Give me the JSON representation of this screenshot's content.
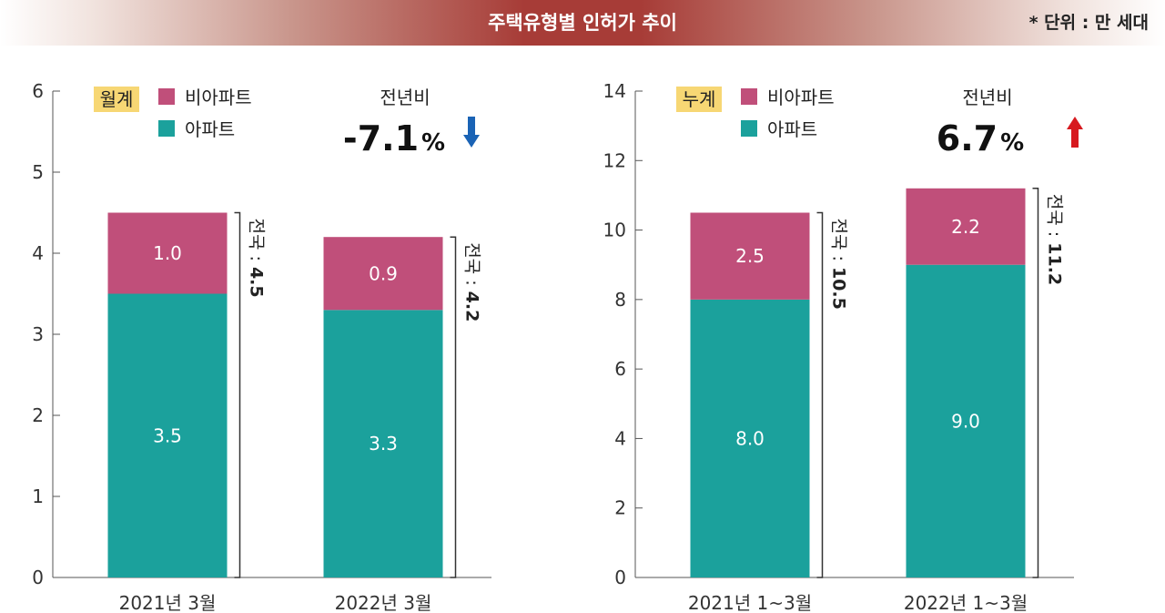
{
  "header": {
    "title": "주택유형별 인허가 추이",
    "unit_note": "* 단위 : 만 세대"
  },
  "colors": {
    "non_apartment": "#c04f7a",
    "apartment": "#1ba19c",
    "tag_bg": "#f7d774",
    "down_arrow": "#1a63b5",
    "up_arrow": "#d7191f"
  },
  "chart_data": [
    {
      "type": "bar",
      "stacked": true,
      "tag": "월계",
      "categories": [
        "2021년 3월",
        "2022년 3월"
      ],
      "series": [
        {
          "name": "아파트",
          "values": [
            3.5,
            3.3
          ]
        },
        {
          "name": "비아파트",
          "values": [
            1.0,
            0.9
          ]
        }
      ],
      "value_labels": {
        "아파트": [
          "3.5",
          "3.3"
        ],
        "비아파트": [
          "1.0",
          "0.9"
        ]
      },
      "totals": [
        4.5,
        4.2
      ],
      "total_labels": [
        "전국 : 4.5",
        "전국 : 4.2"
      ],
      "ylim": [
        0,
        6
      ],
      "yticks": [
        0,
        1,
        2,
        3,
        4,
        5,
        6
      ],
      "yoy_label": "전년비",
      "yoy_value": "-7.1",
      "yoy_unit": "%",
      "yoy_direction": "down"
    },
    {
      "type": "bar",
      "stacked": true,
      "tag": "누계",
      "categories": [
        "2021년 1~3월",
        "2022년 1~3월"
      ],
      "series": [
        {
          "name": "아파트",
          "values": [
            8.0,
            9.0
          ]
        },
        {
          "name": "비아파트",
          "values": [
            2.5,
            2.2
          ]
        }
      ],
      "value_labels": {
        "아파트": [
          "8.0",
          "9.0"
        ],
        "비아파트": [
          "2.5",
          "2.2"
        ]
      },
      "totals": [
        10.5,
        11.2
      ],
      "total_labels": [
        "전국 : 10.5",
        "전국 : 11.2"
      ],
      "ylim": [
        0,
        14
      ],
      "yticks": [
        0,
        2,
        4,
        6,
        8,
        10,
        12,
        14
      ],
      "yoy_label": "전년비",
      "yoy_value": "6.7",
      "yoy_unit": "%",
      "yoy_direction": "up"
    }
  ]
}
